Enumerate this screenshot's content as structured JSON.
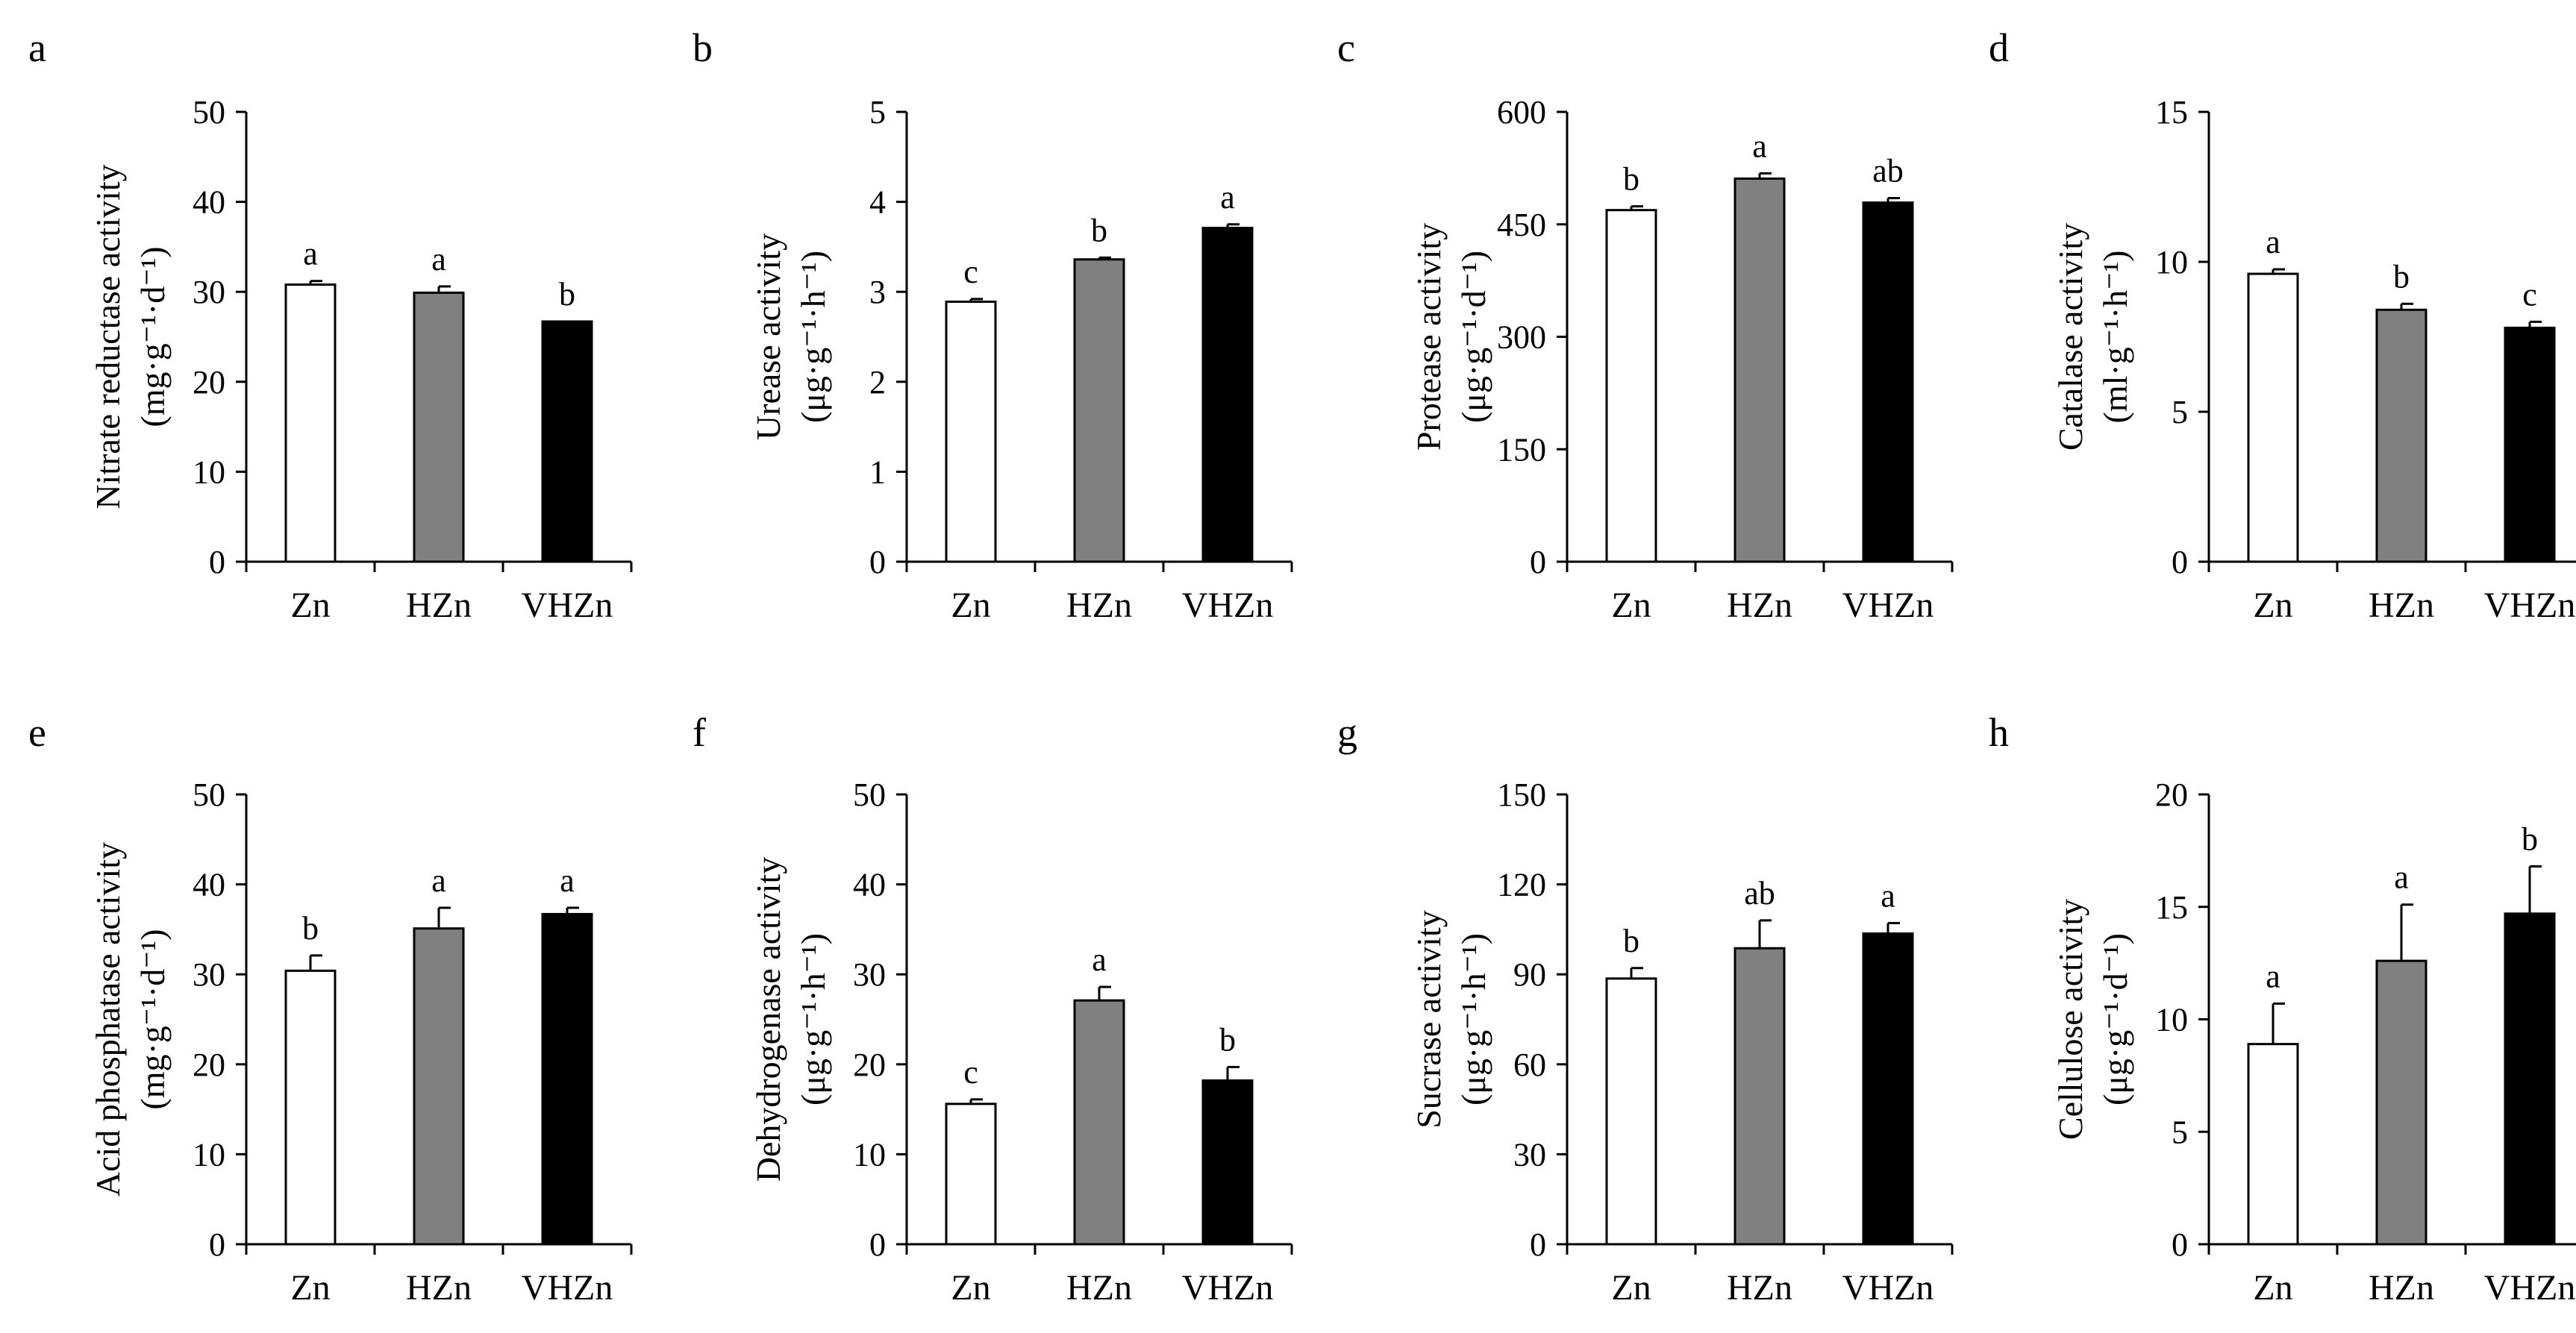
{
  "figure": {
    "background": "#ffffff"
  },
  "colors": {
    "Zn": "#ffffff",
    "HZn": "#808080",
    "VHZn": "#000000",
    "axis": "#000000"
  },
  "chart_data": [
    {
      "panel": "a",
      "type": "bar",
      "categories": [
        "Zn",
        "HZn",
        "VHZn"
      ],
      "values": [
        30.8,
        29.9,
        26.7
      ],
      "errors": [
        0.4,
        0.7,
        0.0
      ],
      "letters": [
        "a",
        "a",
        "b"
      ],
      "ylabel": "Nitrate reductase activity",
      "unit": "(mg·g⁻¹·d⁻¹)",
      "ylim": [
        0,
        50
      ],
      "yticks": [
        "0",
        "10",
        "20",
        "30",
        "40",
        "50"
      ]
    },
    {
      "panel": "b",
      "type": "bar",
      "categories": [
        "Zn",
        "HZn",
        "VHZn"
      ],
      "values": [
        2.89,
        3.36,
        3.71
      ],
      "errors": [
        0.03,
        0.02,
        0.04
      ],
      "letters": [
        "c",
        "b",
        "a"
      ],
      "ylabel": "Urease activity",
      "unit": "(μg·g⁻¹·h⁻¹)",
      "ylim": [
        0,
        5
      ],
      "yticks": [
        "0",
        "1",
        "2",
        "3",
        "4",
        "5"
      ]
    },
    {
      "panel": "c",
      "type": "bar",
      "categories": [
        "Zn",
        "HZn",
        "VHZn"
      ],
      "values": [
        469,
        511,
        479
      ],
      "errors": [
        5,
        7,
        6
      ],
      "letters": [
        "b",
        "a",
        "ab"
      ],
      "ylabel": "Protease activity",
      "unit": "(μg·g⁻¹·d⁻¹)",
      "ylim": [
        0,
        600
      ],
      "yticks": [
        "0",
        "150",
        "300",
        "450",
        "600"
      ]
    },
    {
      "panel": "d",
      "type": "bar",
      "categories": [
        "Zn",
        "HZn",
        "VHZn"
      ],
      "values": [
        9.6,
        8.4,
        7.8
      ],
      "errors": [
        0.15,
        0.2,
        0.2
      ],
      "letters": [
        "a",
        "b",
        "c"
      ],
      "ylabel": "Catalase activity",
      "unit": "(ml·g⁻¹·h⁻¹)",
      "ylim": [
        0,
        15
      ],
      "yticks": [
        "0",
        "5",
        "10",
        "15"
      ]
    },
    {
      "panel": "e",
      "type": "bar",
      "categories": [
        "Zn",
        "HZn",
        "VHZn"
      ],
      "values": [
        30.4,
        35.1,
        36.7
      ],
      "errors": [
        1.7,
        2.3,
        0.7
      ],
      "letters": [
        "b",
        "a",
        "a"
      ],
      "ylabel": "Acid phosphatase activity",
      "unit": "(mg·g⁻¹·d⁻¹)",
      "ylim": [
        0,
        50
      ],
      "yticks": [
        "0",
        "10",
        "20",
        "30",
        "40",
        "50"
      ]
    },
    {
      "panel": "f",
      "type": "bar",
      "categories": [
        "Zn",
        "HZn",
        "VHZn"
      ],
      "values": [
        15.6,
        27.1,
        18.2
      ],
      "errors": [
        0.5,
        1.5,
        1.5
      ],
      "letters": [
        "c",
        "a",
        "b"
      ],
      "ylabel": "Dehydrogenase activity",
      "unit": "(μg·g⁻¹·h⁻¹)",
      "ylim": [
        0,
        50
      ],
      "yticks": [
        "0",
        "10",
        "20",
        "30",
        "40",
        "50"
      ]
    },
    {
      "panel": "g",
      "type": "bar",
      "categories": [
        "Zn",
        "HZn",
        "VHZn"
      ],
      "values": [
        88.6,
        98.7,
        103.6
      ],
      "errors": [
        3.5,
        9.3,
        3.5
      ],
      "letters": [
        "b",
        "ab",
        "a"
      ],
      "ylabel": "Sucrase activity",
      "unit": "(μg·g⁻¹·h⁻¹)",
      "ylim": [
        0,
        150
      ],
      "yticks": [
        "0",
        "30",
        "60",
        "90",
        "120",
        "150"
      ]
    },
    {
      "panel": "h",
      "type": "bar",
      "categories": [
        "Zn",
        "HZn",
        "VHZn"
      ],
      "values": [
        8.9,
        12.6,
        14.7
      ],
      "errors": [
        1.8,
        2.5,
        2.1
      ],
      "letters": [
        "a",
        "a",
        "b"
      ],
      "ylabel": "Cellulose activity",
      "unit": "(μg·g⁻¹·d⁻¹)",
      "ylim": [
        0,
        20
      ],
      "yticks": [
        "0",
        "5",
        "10",
        "15",
        "20"
      ]
    }
  ]
}
